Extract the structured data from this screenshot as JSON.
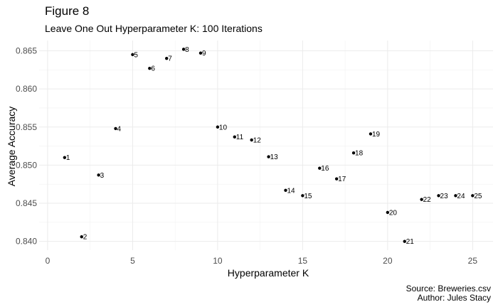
{
  "figure": {
    "title": "Figure 8",
    "subtitle": "Leave One Out Hyperparameter K: 100 Iterations",
    "caption_source": "Source: Breweries.csv",
    "caption_author": "Author: Jules Stacy"
  },
  "chart_data": {
    "type": "scatter",
    "xlabel": "Hyperparameter K",
    "ylabel": "Average Accuracy",
    "xlim": [
      0,
      25
    ],
    "ylim": [
      0.84,
      0.865
    ],
    "x_ticks": [
      0,
      5,
      10,
      15,
      20,
      25
    ],
    "y_ticks": [
      0.84,
      0.845,
      0.85,
      0.855,
      0.86,
      0.865
    ],
    "y_tick_labels": [
      "0.840",
      "0.845",
      "0.850",
      "0.855",
      "0.860",
      "0.865"
    ],
    "grid": true,
    "legend": "none",
    "point_color": "#000000",
    "points": [
      {
        "x": 1,
        "y": 0.851,
        "label": "1"
      },
      {
        "x": 2,
        "y": 0.8406,
        "label": "2"
      },
      {
        "x": 3,
        "y": 0.8487,
        "label": "3"
      },
      {
        "x": 4,
        "y": 0.8548,
        "label": "4"
      },
      {
        "x": 5,
        "y": 0.8645,
        "label": "5"
      },
      {
        "x": 6,
        "y": 0.8627,
        "label": "6"
      },
      {
        "x": 7,
        "y": 0.864,
        "label": "7"
      },
      {
        "x": 8,
        "y": 0.8652,
        "label": "8"
      },
      {
        "x": 9,
        "y": 0.8647,
        "label": "9"
      },
      {
        "x": 10,
        "y": 0.855,
        "label": "10"
      },
      {
        "x": 11,
        "y": 0.8537,
        "label": "11"
      },
      {
        "x": 12,
        "y": 0.8533,
        "label": "12"
      },
      {
        "x": 13,
        "y": 0.8511,
        "label": "13"
      },
      {
        "x": 14,
        "y": 0.8467,
        "label": "14"
      },
      {
        "x": 15,
        "y": 0.846,
        "label": "15"
      },
      {
        "x": 16,
        "y": 0.8496,
        "label": "16"
      },
      {
        "x": 17,
        "y": 0.8482,
        "label": "17"
      },
      {
        "x": 18,
        "y": 0.8516,
        "label": "18"
      },
      {
        "x": 19,
        "y": 0.8541,
        "label": "19"
      },
      {
        "x": 20,
        "y": 0.8438,
        "label": "20"
      },
      {
        "x": 21,
        "y": 0.84,
        "label": "21"
      },
      {
        "x": 22,
        "y": 0.8455,
        "label": "22"
      },
      {
        "x": 23,
        "y": 0.846,
        "label": "23"
      },
      {
        "x": 24,
        "y": 0.846,
        "label": "24"
      },
      {
        "x": 25,
        "y": 0.846,
        "label": "25"
      }
    ]
  }
}
